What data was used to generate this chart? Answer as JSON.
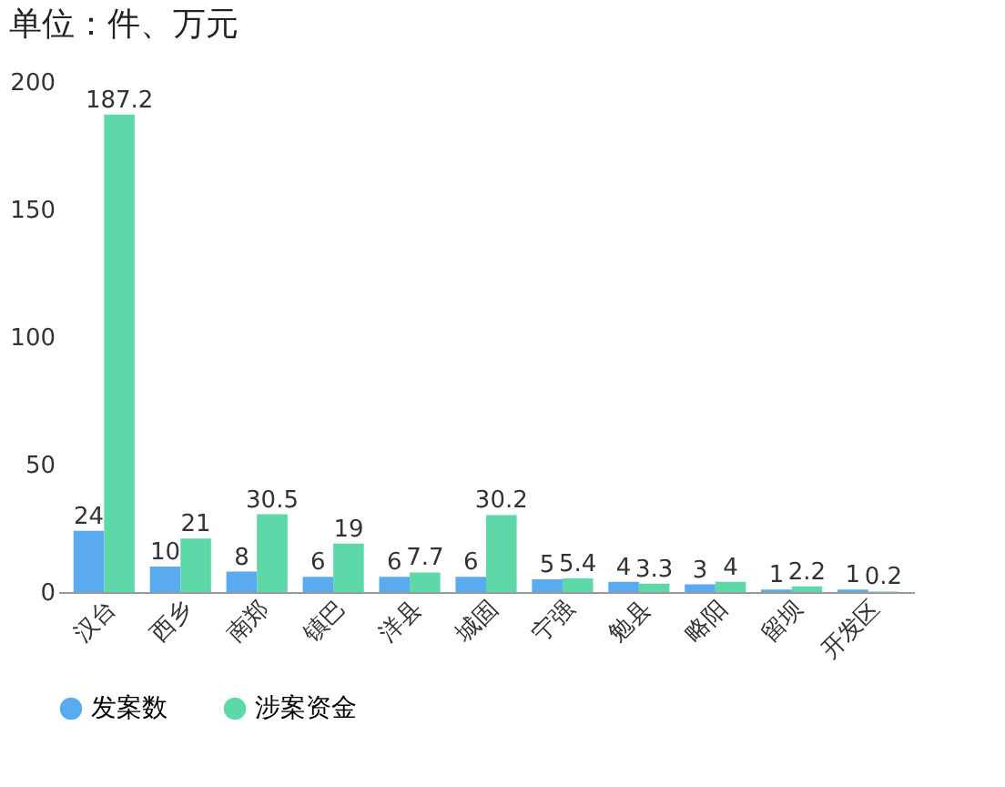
{
  "chart_data": {
    "type": "bar",
    "title": "单位：件、万元",
    "categories": [
      "汉台",
      "西乡",
      "南郑",
      "镇巴",
      "洋县",
      "城固",
      "宁强",
      "勉县",
      "略阳",
      "留坝",
      "开发区"
    ],
    "series": [
      {
        "name": "发案数",
        "color": "#5aaaf0",
        "values": [
          24,
          10,
          8,
          6,
          6,
          6,
          5,
          4,
          3,
          1,
          1
        ]
      },
      {
        "name": "涉案资金",
        "color": "#5ed8a9",
        "values": [
          187.2,
          21,
          30.5,
          19,
          7.7,
          30.2,
          5.4,
          3.3,
          4,
          2.2,
          0.2
        ]
      }
    ],
    "ylim": [
      0,
      200
    ],
    "yticks": [
      0,
      50,
      100,
      150,
      200
    ],
    "grid": false,
    "legend": "bottom",
    "data_labels": true
  }
}
